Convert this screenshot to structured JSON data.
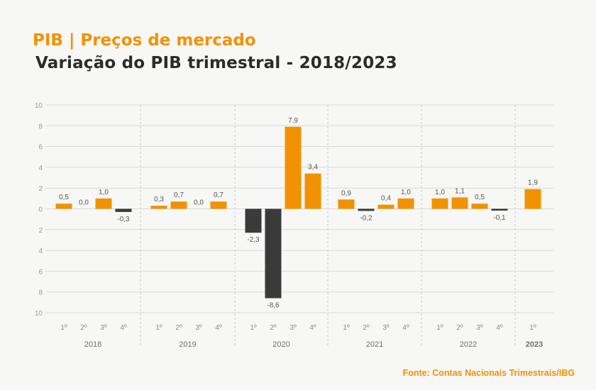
{
  "header": {
    "title": "PIB | Preços de mercado",
    "subtitle": "Variação do PIB trimestral - 2018/2023"
  },
  "footer": {
    "source": "Fonte: Contas Nacionais Trimestrais/IBG"
  },
  "colors": {
    "positive": "#f29200",
    "negative": "#3a3a3a",
    "title": "#f29200",
    "grid": "#d9d9d9"
  },
  "chart_data": {
    "type": "bar",
    "title": "Variação do PIB trimestral - 2018/2023",
    "xlabel": "",
    "ylabel": "",
    "ylim": [
      -10,
      10
    ],
    "yticks": [
      10,
      8,
      6,
      4,
      2,
      0,
      -2,
      -4,
      -6,
      -8,
      -10
    ],
    "ytick_labels": [
      "10",
      "8",
      "6",
      "4",
      "2",
      "0",
      "2",
      "4",
      "6",
      "8",
      "10"
    ],
    "grid": true,
    "groups": [
      {
        "year": "2018",
        "bold": false,
        "quarters": [
          {
            "q": "1º",
            "value": 0.5,
            "label": "0,5"
          },
          {
            "q": "2º",
            "value": 0.0,
            "label": "0,0"
          },
          {
            "q": "3º",
            "value": 1.0,
            "label": "1,0"
          },
          {
            "q": "4º",
            "value": -0.3,
            "label": "-0,3"
          }
        ]
      },
      {
        "year": "2019",
        "bold": false,
        "quarters": [
          {
            "q": "1º",
            "value": 0.3,
            "label": "0,3"
          },
          {
            "q": "2º",
            "value": 0.7,
            "label": "0,7"
          },
          {
            "q": "3º",
            "value": 0.0,
            "label": "0,0"
          },
          {
            "q": "4º",
            "value": 0.7,
            "label": "0,7"
          }
        ]
      },
      {
        "year": "2020",
        "bold": false,
        "quarters": [
          {
            "q": "1º",
            "value": -2.3,
            "label": "-2,3"
          },
          {
            "q": "2º",
            "value": -8.6,
            "label": "-8,6"
          },
          {
            "q": "3º",
            "value": 7.9,
            "label": "7,9"
          },
          {
            "q": "4º",
            "value": 3.4,
            "label": "3,4"
          }
        ]
      },
      {
        "year": "2021",
        "bold": false,
        "quarters": [
          {
            "q": "1º",
            "value": 0.9,
            "label": "0,9"
          },
          {
            "q": "2º",
            "value": -0.2,
            "label": "-0,2"
          },
          {
            "q": "3º",
            "value": 0.4,
            "label": "0,4"
          },
          {
            "q": "4º",
            "value": 1.0,
            "label": "1,0"
          }
        ]
      },
      {
        "year": "2022",
        "bold": false,
        "quarters": [
          {
            "q": "1º",
            "value": 1.0,
            "label": "1,0"
          },
          {
            "q": "2º",
            "value": 1.1,
            "label": "1,1"
          },
          {
            "q": "3º",
            "value": 0.5,
            "label": "0,5"
          },
          {
            "q": "4º",
            "value": -0.1,
            "label": "-0,1"
          }
        ]
      },
      {
        "year": "2023",
        "bold": true,
        "quarters": [
          {
            "q": "1º",
            "value": 1.9,
            "label": "1,9"
          }
        ]
      }
    ]
  }
}
